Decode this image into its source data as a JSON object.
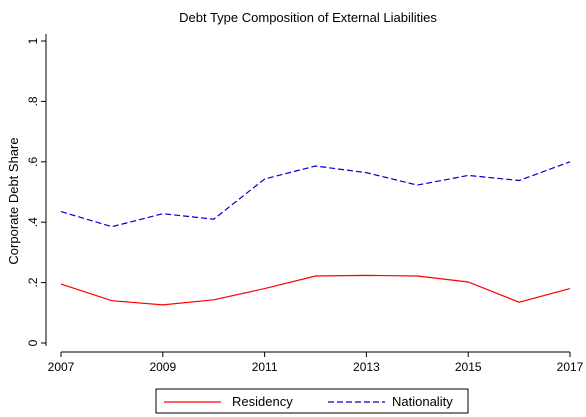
{
  "chart_data": {
    "type": "line",
    "title": "Debt Type Composition of External Liabilities",
    "xlabel": "",
    "ylabel": "Corporate Debt Share",
    "x": [
      2007,
      2008,
      2009,
      2010,
      2011,
      2012,
      2013,
      2014,
      2015,
      2016,
      2017
    ],
    "xticks": [
      2007,
      2009,
      2011,
      2013,
      2015,
      2017
    ],
    "yticks": [
      0,
      0.2,
      0.4,
      0.6,
      0.8,
      1
    ],
    "ytick_labels": [
      "0",
      ".2",
      ".4",
      ".6",
      ".8",
      "1"
    ],
    "xlim": [
      2007,
      2017
    ],
    "ylim": [
      0,
      1
    ],
    "grid": false,
    "legend_position": "bottom",
    "series": [
      {
        "name": "Residency",
        "color": "#ff0000",
        "dash": "solid",
        "values": [
          0.195,
          0.14,
          0.126,
          0.143,
          0.18,
          0.222,
          0.224,
          0.222,
          0.202,
          0.135,
          0.18
        ]
      },
      {
        "name": "Nationality",
        "color": "#0000cc",
        "dash": "dashed",
        "values": [
          0.435,
          0.385,
          0.428,
          0.41,
          0.543,
          0.586,
          0.564,
          0.523,
          0.555,
          0.538,
          0.6
        ]
      }
    ]
  }
}
